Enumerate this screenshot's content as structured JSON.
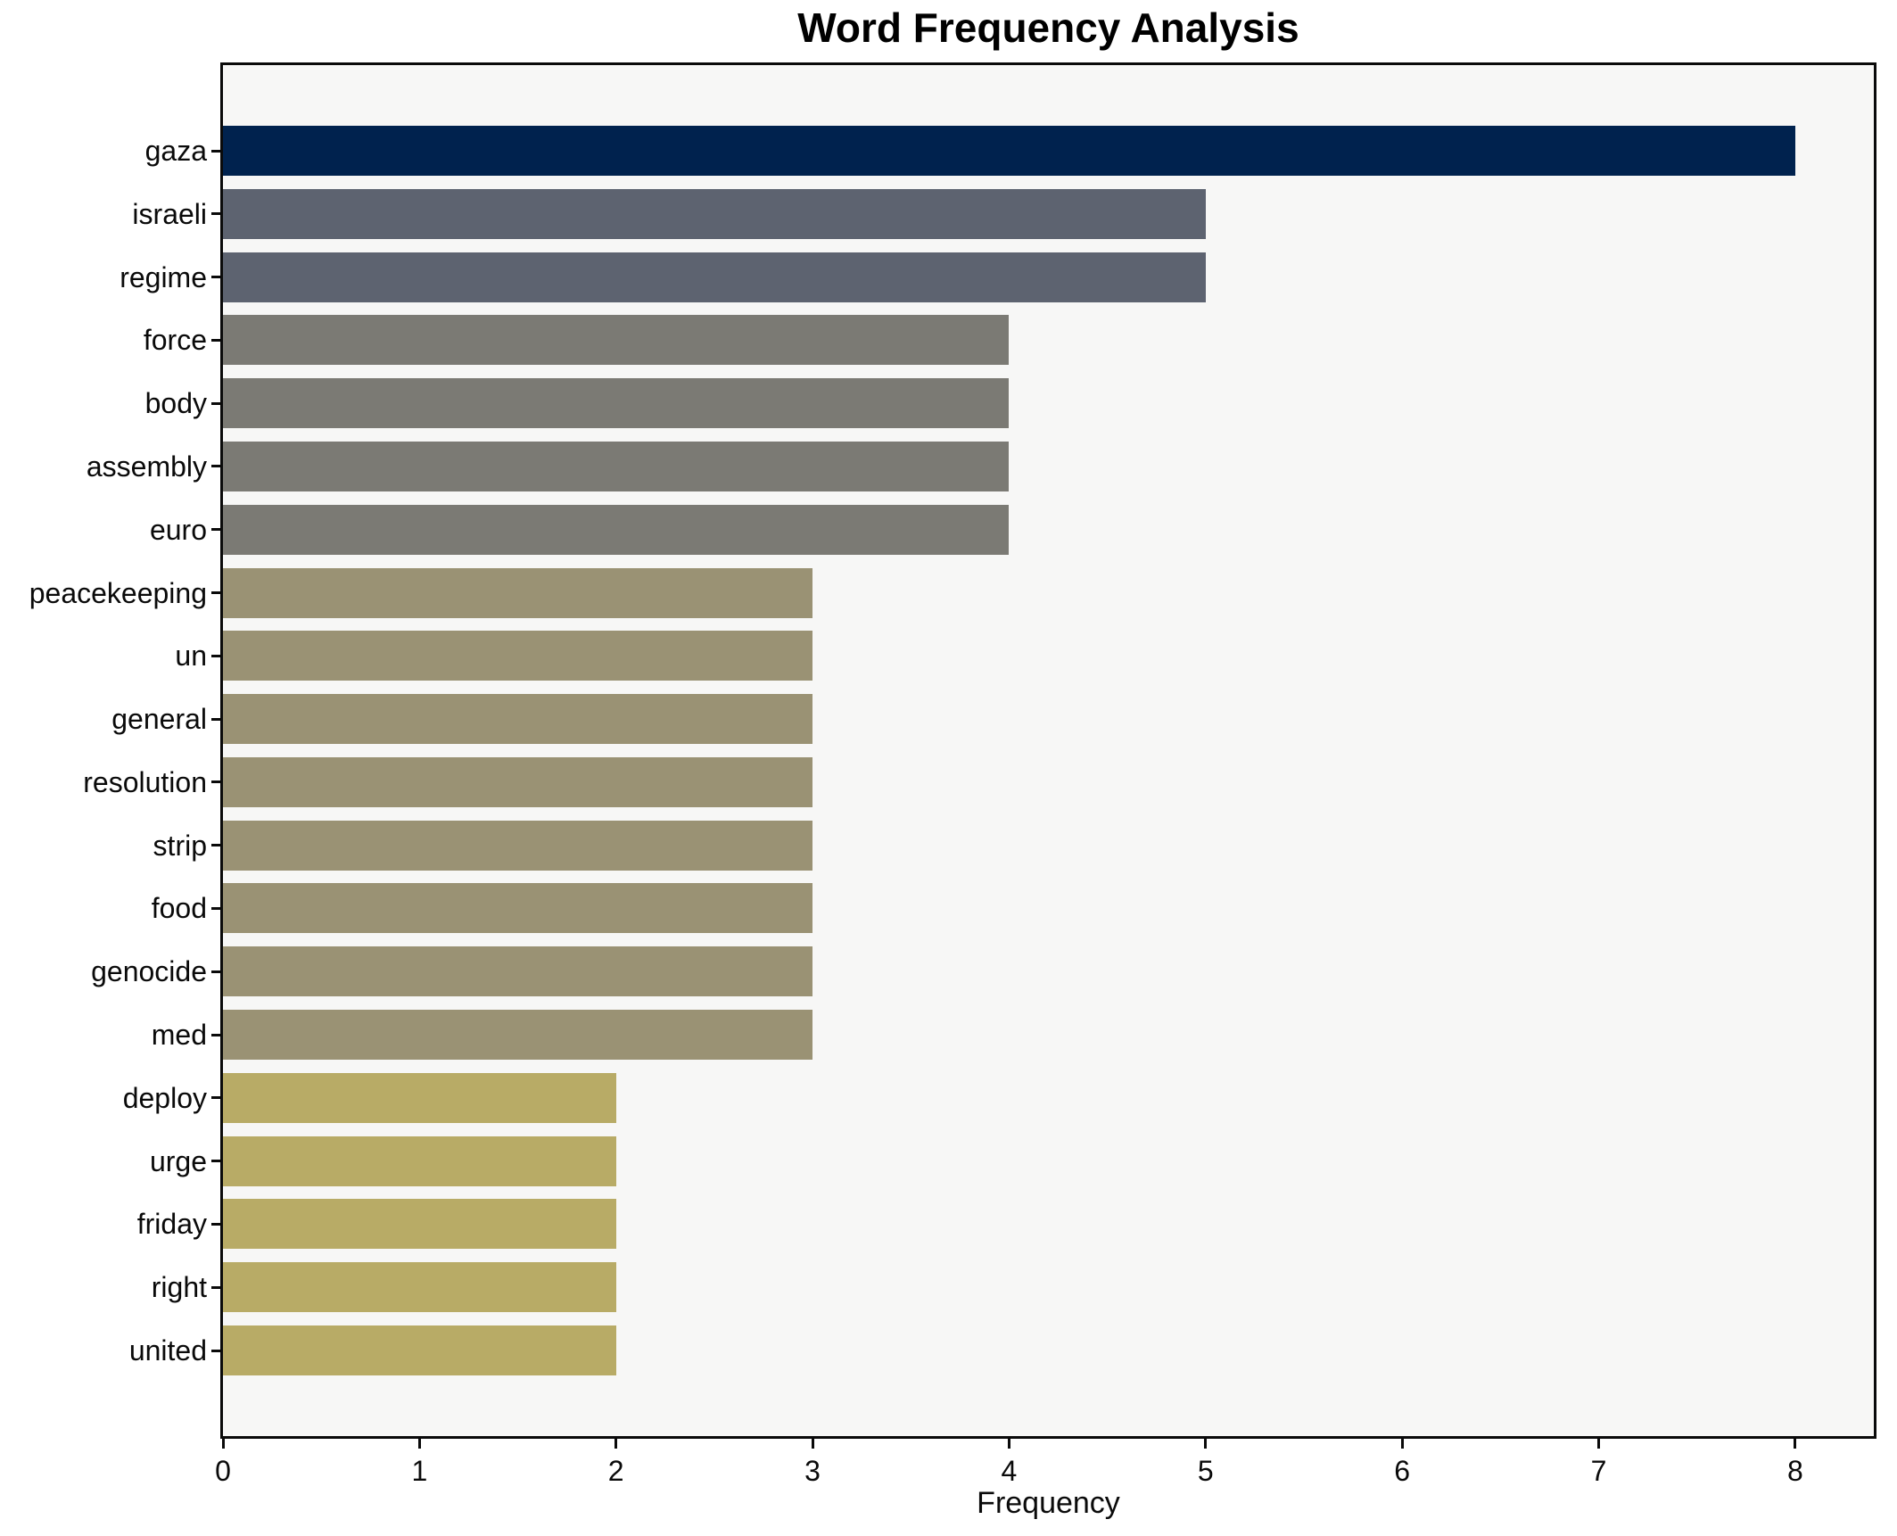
{
  "chart_data": {
    "type": "bar",
    "orientation": "horizontal",
    "title": "Word Frequency Analysis",
    "xlabel": "Frequency",
    "ylabel": "",
    "grid": false,
    "legend": null,
    "xlim": [
      0,
      8.4
    ],
    "xticks": [
      0,
      1,
      2,
      3,
      4,
      5,
      6,
      7,
      8
    ],
    "categories": [
      "gaza",
      "israeli",
      "regime",
      "force",
      "body",
      "assembly",
      "euro",
      "peacekeeping",
      "un",
      "general",
      "resolution",
      "strip",
      "food",
      "genocide",
      "med",
      "deploy",
      "urge",
      "friday",
      "right",
      "united"
    ],
    "values": [
      8,
      5,
      5,
      4,
      4,
      4,
      4,
      3,
      3,
      3,
      3,
      3,
      3,
      3,
      3,
      2,
      2,
      2,
      2,
      2
    ],
    "bar_colors": [
      "#00224e",
      "#5d6370",
      "#5d6370",
      "#7b7a74",
      "#7b7a74",
      "#7b7a74",
      "#7b7a74",
      "#9a9274",
      "#9a9274",
      "#9a9274",
      "#9a9274",
      "#9a9274",
      "#9a9274",
      "#9a9274",
      "#9a9274",
      "#b8ab66",
      "#b8ab66",
      "#b8ab66",
      "#b8ab66",
      "#b8ab66"
    ],
    "plot_background": "#f7f7f6",
    "spine_color": "#0a0a0a"
  }
}
